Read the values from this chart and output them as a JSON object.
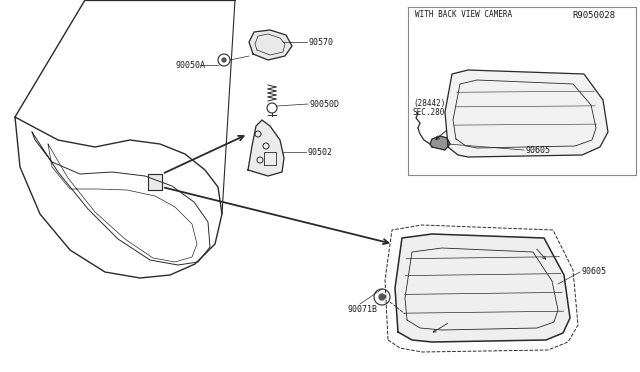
{
  "bg_color": "#ffffff",
  "line_color": "#2a2a2a",
  "text_color": "#1a1a1a",
  "diagram_id": "R9050028",
  "camera_box_title": "WITH BACK VIEW CAMERA",
  "label_90071B": "90071B",
  "label_90605": "90605",
  "label_90502": "90502",
  "label_90050D": "90050D",
  "label_90050A": "90050A",
  "label_90570": "90570",
  "label_sec280": "SEC.280",
  "label_28442": "(28442)"
}
